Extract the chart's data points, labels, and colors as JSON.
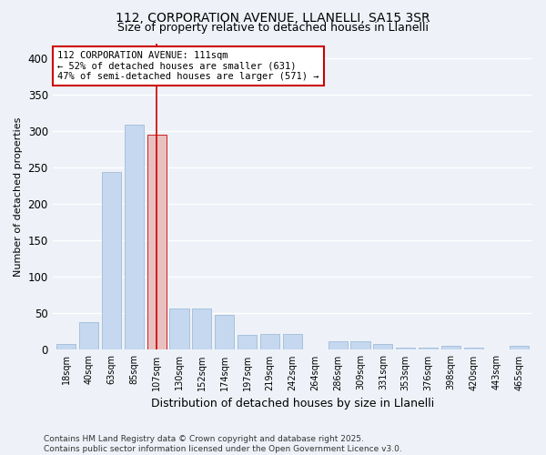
{
  "title": "112, CORPORATION AVENUE, LLANELLI, SA15 3SR",
  "subtitle": "Size of property relative to detached houses in Llanelli",
  "xlabel": "Distribution of detached houses by size in Llanelli",
  "ylabel": "Number of detached properties",
  "categories": [
    "18sqm",
    "40sqm",
    "63sqm",
    "85sqm",
    "107sqm",
    "130sqm",
    "152sqm",
    "174sqm",
    "197sqm",
    "219sqm",
    "242sqm",
    "264sqm",
    "286sqm",
    "309sqm",
    "331sqm",
    "353sqm",
    "376sqm",
    "398sqm",
    "420sqm",
    "443sqm",
    "465sqm"
  ],
  "values": [
    8,
    38,
    243,
    308,
    295,
    57,
    57,
    48,
    20,
    22,
    22,
    0,
    12,
    12,
    8,
    3,
    3,
    5,
    3,
    0,
    5
  ],
  "bar_color": "#c5d8f0",
  "bar_edge_color": "#a0bcd8",
  "marker_index": 4,
  "marker_color": "#cc0000",
  "marker_bar_color": "#e8c0c0",
  "annotation_text": "112 CORPORATION AVENUE: 111sqm\n← 52% of detached houses are smaller (631)\n47% of semi-detached houses are larger (571) →",
  "annotation_box_facecolor": "#ffffff",
  "annotation_box_edgecolor": "#cc0000",
  "footer_line1": "Contains HM Land Registry data © Crown copyright and database right 2025.",
  "footer_line2": "Contains public sector information licensed under the Open Government Licence v3.0.",
  "ylim_max": 420,
  "yticks": [
    0,
    50,
    100,
    150,
    200,
    250,
    300,
    350,
    400
  ],
  "background_color": "#eef2f8",
  "title_fontsize": 10,
  "subtitle_fontsize": 9,
  "ylabel_fontsize": 8,
  "xlabel_fontsize": 9,
  "tick_fontsize": 7,
  "annotation_fontsize": 7.5,
  "footer_fontsize": 6.5
}
